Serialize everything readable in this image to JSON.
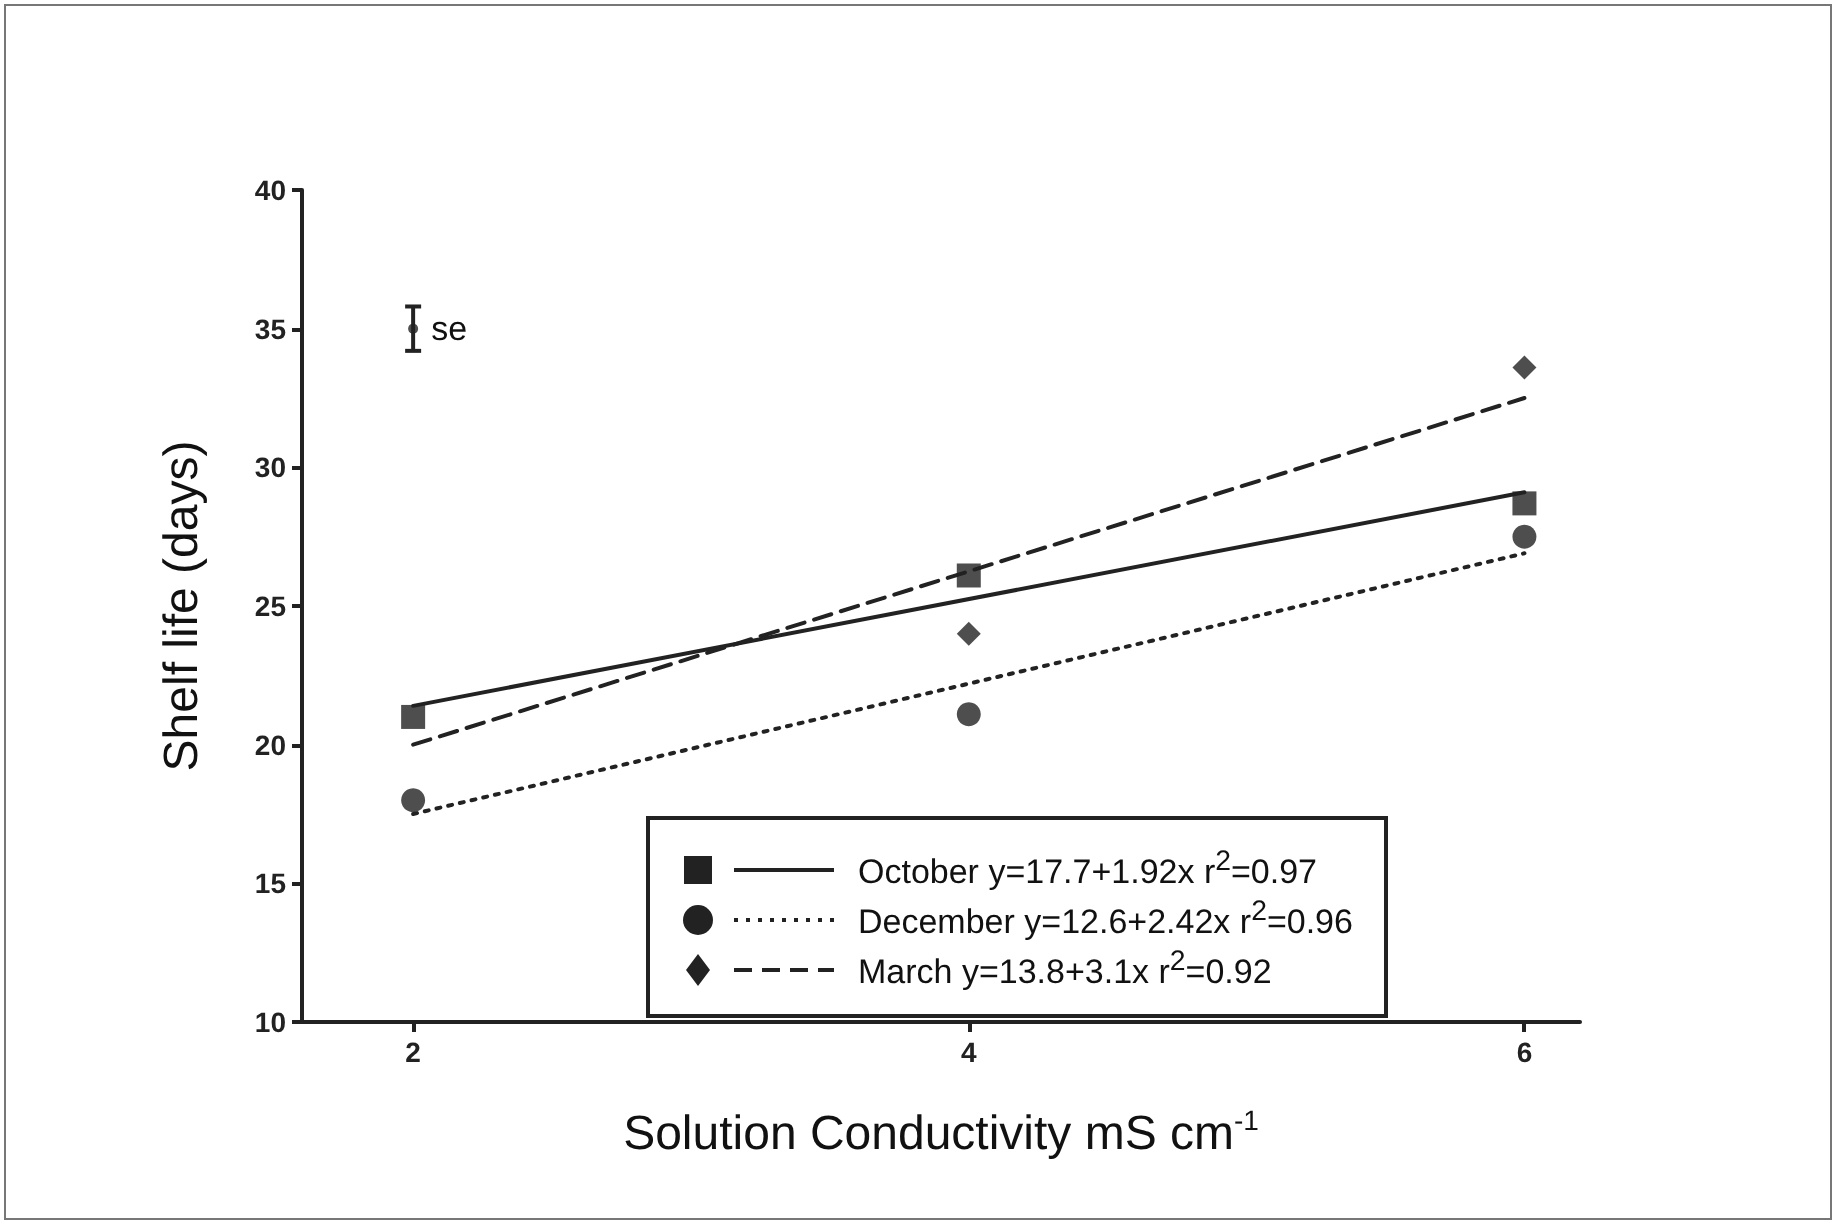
{
  "chart_data": {
    "type": "scatter",
    "xlabel": "Solution Conductivity mS cm$^{-1}$",
    "ylabel": "Shelf life (days)",
    "xlim": [
      1.6,
      6.2
    ],
    "xticks": [
      2,
      4,
      6
    ],
    "ylim": [
      10,
      40
    ],
    "yticks": [
      10,
      15,
      20,
      25,
      30,
      35,
      40
    ],
    "grid": false,
    "legend": "bottom right",
    "series": [
      {
        "name": "October y=17.7+1.92x r$^{2}$=0.97",
        "marker": "square",
        "color": "#222222",
        "x": [
          2,
          4,
          6
        ],
        "values": [
          21.0,
          26.1,
          28.7
        ]
      },
      {
        "name": "December y=12.6+2.42x r$^{2}$=0.96",
        "marker": "circle",
        "color": "#222222",
        "x": [
          2,
          4,
          6
        ],
        "values": [
          18.0,
          21.1,
          27.5
        ]
      },
      {
        "name": "March y=13.8+3.1x r$^{2}$=0.92",
        "marker": "diamond",
        "color": "#222222",
        "x": [
          4,
          6
        ],
        "values": [
          24.0,
          33.6
        ]
      },
      {
        "type": "line",
        "marker": "none",
        "line_style": "solid",
        "color": "#222222",
        "x": [
          2,
          6
        ],
        "values": [
          21.4,
          29.1
        ]
      },
      {
        "type": "line",
        "marker": "none",
        "line_style": "dotted",
        "color": "#222222",
        "x": [
          2,
          6
        ],
        "values": [
          17.5,
          26.9
        ]
      },
      {
        "type": "line",
        "marker": "none",
        "line_style": "dashed",
        "color": "#222222",
        "x": [
          2,
          6
        ],
        "values": [
          20.0,
          32.5
        ]
      },
      {
        "name": "se",
        "color": "#222222",
        "x": [
          2
        ],
        "values": [
          35
        ],
        "errors": [
          0.8
        ]
      }
    ]
  }
}
